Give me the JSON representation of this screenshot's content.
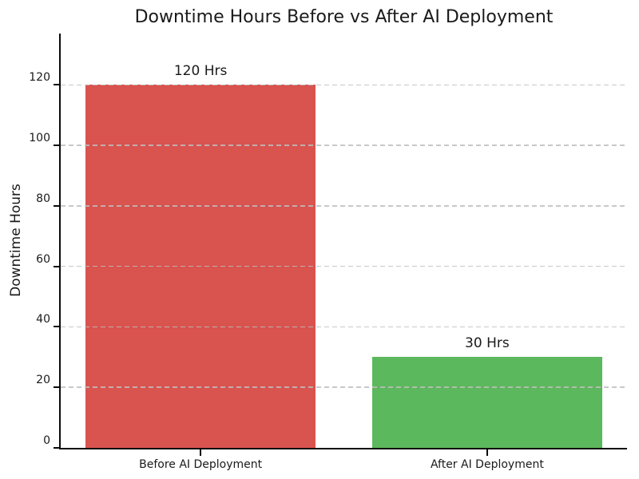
{
  "chart_data": {
    "type": "bar",
    "title": "Downtime Hours Before vs After AI Deployment",
    "categories": [
      "Before AI Deployment",
      "After AI Deployment"
    ],
    "values": [
      120,
      30
    ],
    "bar_value_labels": [
      "120 Hrs",
      "30 Hrs"
    ],
    "bar_colors": [
      "#d9534f",
      "#5cb85c"
    ],
    "xlabel": "",
    "ylabel": "Downtime Hours",
    "yticks": [
      0,
      20,
      40,
      60,
      80,
      100,
      120
    ],
    "ylim": [
      0,
      137
    ],
    "grid": {
      "axis": "y",
      "style": "dashed",
      "color": "#cccccc"
    },
    "legend": "none",
    "spines": [
      "left",
      "bottom"
    ]
  }
}
